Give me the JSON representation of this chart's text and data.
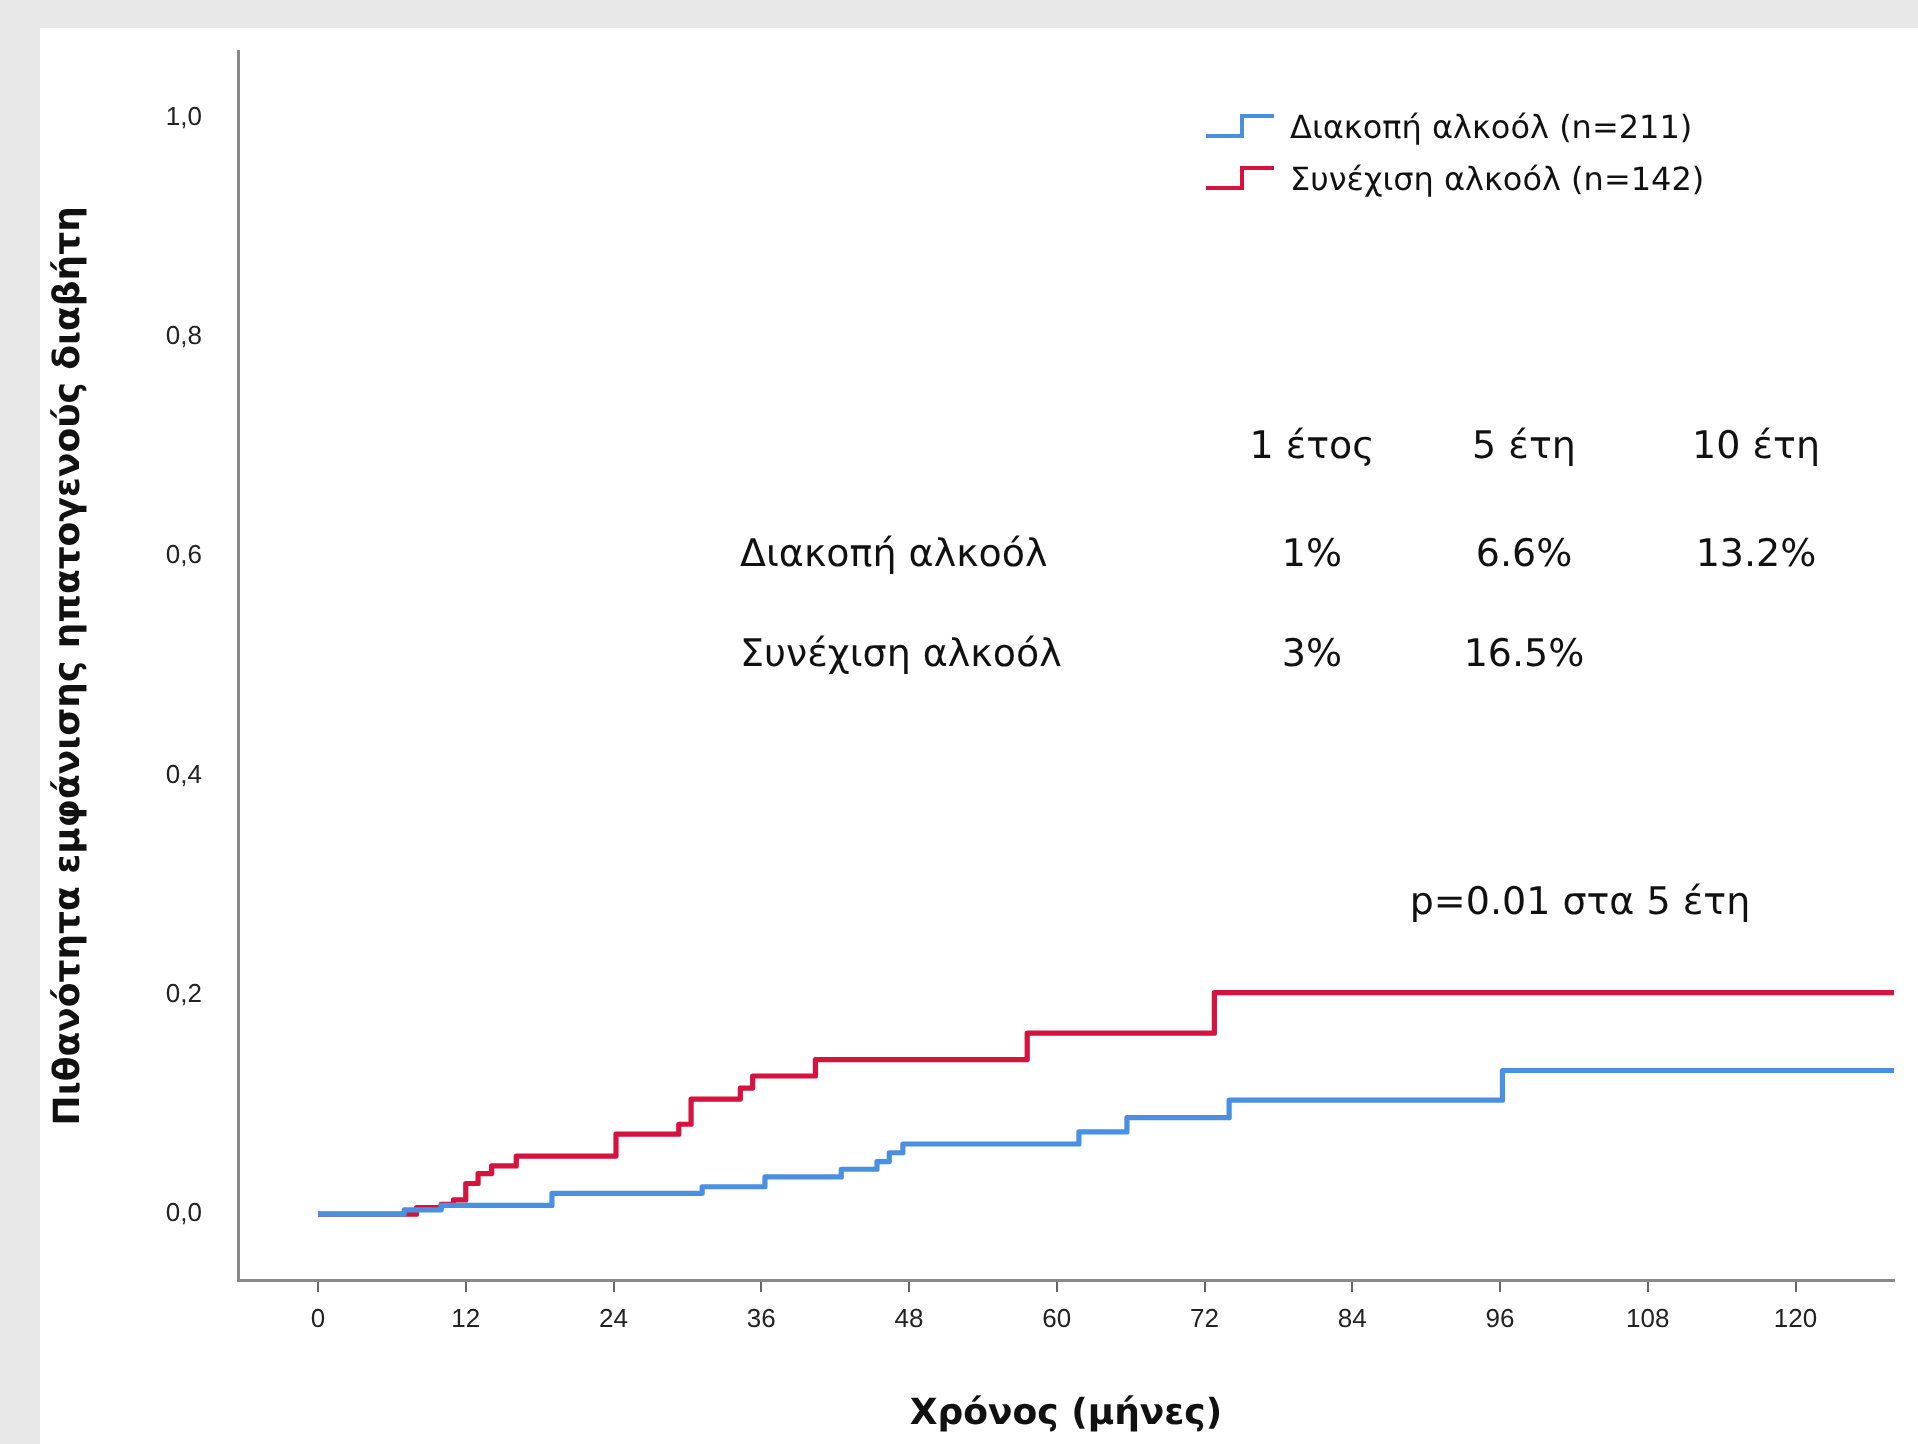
{
  "chart_data": {
    "type": "step",
    "xlabel": "Χρόνος (μήνες)",
    "ylabel": "Πιθανότητα εμφάνισης ηπατογενούς διαβήτη",
    "xlim": [
      -6.5,
      128
    ],
    "xticks": [
      0,
      12,
      24,
      36,
      48,
      60,
      72,
      84,
      96,
      108,
      120
    ],
    "ylim": [
      -0.06,
      1.06
    ],
    "yticks": [
      {
        "value": 0,
        "label": "0,0"
      },
      {
        "value": 0.2,
        "label": "0,2"
      },
      {
        "value": 0.4,
        "label": "0,4"
      },
      {
        "value": 0.6,
        "label": "0,6"
      },
      {
        "value": 0.8,
        "label": "0,8"
      },
      {
        "value": 1,
        "label": "1,0"
      }
    ],
    "grid": false,
    "legend": "top right",
    "marker": "none",
    "line_style": "solid",
    "series": [
      {
        "name": "Διακοπή αλκοόλ (n=211)",
        "color": "#4a90e2",
        "x": [
          0,
          7,
          10,
          19,
          31.2,
          36.3,
          42.5,
          45.4,
          46.4,
          47.5,
          61.8,
          65.7,
          74,
          96.2,
          128
        ],
        "values": [
          0,
          0.004,
          0.008,
          0.019,
          0.025,
          0.034,
          0.041,
          0.048,
          0.056,
          0.064,
          0.075,
          0.088,
          0.104,
          0.131,
          0.131
        ]
      },
      {
        "name": "Συνέχιση αλκοόλ (n=142)",
        "color": "#d6123f",
        "x": [
          0,
          8,
          10,
          11,
          12,
          13,
          14.1,
          16.1,
          24.2,
          29.3,
          30.3,
          34.3,
          35.3,
          40.4,
          57.6,
          72.8,
          128
        ],
        "values": [
          0,
          0.006,
          0.009,
          0.013,
          0.028,
          0.037,
          0.044,
          0.053,
          0.073,
          0.082,
          0.105,
          0.115,
          0.126,
          0.141,
          0.165,
          0.202,
          0.202
        ]
      }
    ],
    "annotations": [
      "1 έτος",
      "5 έτη",
      "10 έτη",
      "Διακοπή αλκοόλ",
      "1%",
      "6.6%",
      "13.2%",
      "Συνέχιση αλκοόλ",
      "3%",
      "16.5%",
      "p=0.01 στα 5 έτη"
    ]
  }
}
